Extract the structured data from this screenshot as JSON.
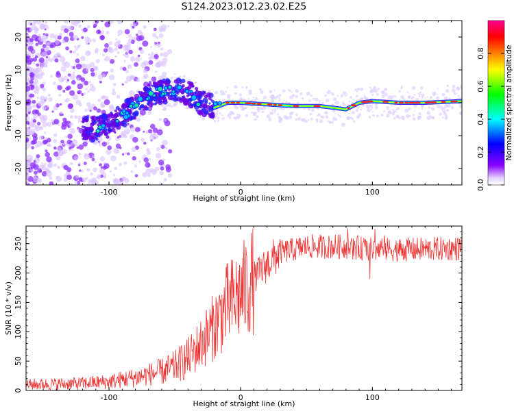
{
  "title": "S124.2023.012.23.02.E25",
  "chart_data": [
    {
      "type": "heatmap",
      "xlabel": "Height of straight line (km)",
      "ylabel": "Frequency (Hz)",
      "xlim": [
        -163,
        168
      ],
      "ylim": [
        -25,
        25
      ],
      "xticks": [
        -100,
        0,
        100
      ],
      "yticks": [
        -20,
        -10,
        0,
        10,
        20
      ],
      "colorbar": {
        "label": "Normalized spectral amplitude",
        "range": [
          0.0,
          1.0
        ],
        "ticks": [
          "0.0",
          "0.2",
          "0.4",
          "0.6",
          "0.8"
        ],
        "colormap": [
          "#ffffff",
          "#8b00ff",
          "#0000ff",
          "#00ffff",
          "#00ff00",
          "#ffff00",
          "#ff8000",
          "#ff0000",
          "#ff0090"
        ]
      },
      "ridge": {
        "x": [
          -115,
          -100,
          -90,
          -80,
          -70,
          -60,
          -50,
          -40,
          -30,
          -20,
          -10,
          0,
          20,
          40,
          60,
          70,
          80,
          90,
          100,
          120,
          140,
          168
        ],
        "y": [
          -8,
          -7,
          -4,
          -1,
          2,
          3.5,
          4,
          3,
          0,
          -1.5,
          0,
          0,
          -0.5,
          -1,
          -1,
          -1.5,
          -2,
          0,
          0.5,
          0,
          0,
          0.5
        ]
      }
    },
    {
      "type": "line",
      "xlabel": "Height of straight line (km)",
      "ylabel": "SNR (10 * v/v)",
      "xlim": [
        -163,
        168
      ],
      "ylim": [
        0,
        280
      ],
      "xticks": [
        -100,
        0,
        100
      ],
      "yticks": [
        0,
        50,
        100,
        150,
        200,
        250
      ],
      "color": "#ee3333",
      "trend": {
        "x": [
          -163,
          -120,
          -100,
          -80,
          -60,
          -50,
          -40,
          -30,
          -20,
          -10,
          0,
          10,
          20,
          30,
          50,
          80,
          100,
          130,
          168
        ],
        "y": [
          10,
          12,
          15,
          22,
          32,
          40,
          55,
          80,
          110,
          145,
          165,
          190,
          215,
          235,
          245,
          245,
          240,
          240,
          242
        ]
      }
    }
  ]
}
